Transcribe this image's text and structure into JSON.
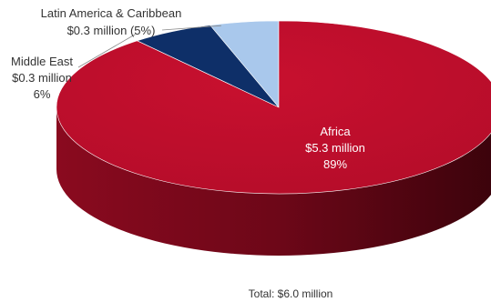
{
  "chart_data": {
    "type": "pie",
    "style": "3d",
    "title": "",
    "total_label": "Total: $6.0 million",
    "start_position": "12 o'clock",
    "slices": [
      {
        "name": "Africa",
        "amount": 5.3,
        "percent": 89,
        "amount_label": "$5.3 million",
        "percent_label": "89%",
        "color": "#C00E2E",
        "side_color": "#6E0717",
        "label_position": "inside"
      },
      {
        "name": "Middle East",
        "amount": 0.3,
        "percent": 6,
        "amount_label": "$0.3 million",
        "percent_label": "6%",
        "color": "#0E2F68",
        "side_color": "#081D40",
        "label_position": "outside-left"
      },
      {
        "name": "Latin America & Caribbean",
        "amount": 0.3,
        "percent": 5,
        "amount_label": "$0.3 million",
        "combined_label": "$0.3 million (5%)",
        "color": "#A9C8EC",
        "side_color": "#7C9CC2",
        "label_position": "outside-top"
      }
    ]
  }
}
